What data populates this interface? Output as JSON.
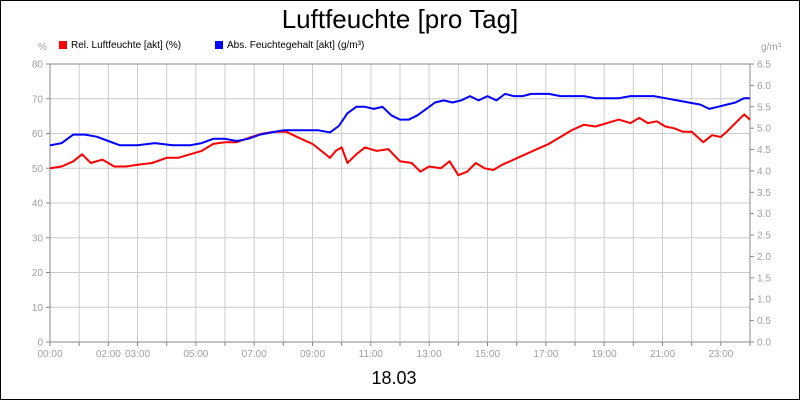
{
  "chart_data": {
    "type": "line",
    "title": "Luftfeuchte [pro Tag]",
    "date_label": "18.03",
    "y_left": {
      "unit": "%",
      "min": 0,
      "max": 80,
      "ticks": [
        "0",
        "10",
        "20",
        "30",
        "40",
        "50",
        "60",
        "70",
        "80"
      ]
    },
    "y_right": {
      "unit": "g/m³",
      "min": 0,
      "max": 6.5,
      "ticks": [
        "0.0",
        "0.5",
        "1.0",
        "1.5",
        "2.0",
        "2.5",
        "3.0",
        "3.5",
        "4.0",
        "4.5",
        "5.0",
        "5.5",
        "6.0",
        "6.5"
      ]
    },
    "x_range": [
      0,
      24
    ],
    "x_ticks": [
      {
        "h": 0,
        "label": "00:00"
      },
      {
        "h": 2,
        "label": "02:00"
      },
      {
        "h": 3,
        "label": "03:00"
      },
      {
        "h": 5,
        "label": "05:00"
      },
      {
        "h": 7,
        "label": "07:00"
      },
      {
        "h": 9,
        "label": "09:00"
      },
      {
        "h": 11,
        "label": "11:00"
      },
      {
        "h": 13,
        "label": "13:00"
      },
      {
        "h": 15,
        "label": "15:00"
      },
      {
        "h": 17,
        "label": "17:00"
      },
      {
        "h": 19,
        "label": "19:00"
      },
      {
        "h": 21,
        "label": "21:00"
      },
      {
        "h": 23,
        "label": "23:00"
      }
    ],
    "grid": true,
    "legend_position": "top-left",
    "series": [
      {
        "name": "Rel. Luftfeuchte [akt] (%)",
        "color": "#ff0000",
        "axis": "left",
        "points": [
          [
            0.0,
            50
          ],
          [
            0.4,
            50.5
          ],
          [
            0.8,
            52
          ],
          [
            1.1,
            54
          ],
          [
            1.4,
            51.5
          ],
          [
            1.8,
            52.5
          ],
          [
            2.2,
            50.5
          ],
          [
            2.6,
            50.5
          ],
          [
            3.0,
            51
          ],
          [
            3.5,
            51.5
          ],
          [
            4.0,
            53
          ],
          [
            4.4,
            53
          ],
          [
            4.8,
            54
          ],
          [
            5.2,
            55
          ],
          [
            5.6,
            57
          ],
          [
            6.0,
            57.5
          ],
          [
            6.4,
            57.5
          ],
          [
            6.9,
            59
          ],
          [
            7.3,
            60
          ],
          [
            7.7,
            60.5
          ],
          [
            8.1,
            60.5
          ],
          [
            8.6,
            58.5
          ],
          [
            9.0,
            57
          ],
          [
            9.3,
            55
          ],
          [
            9.6,
            53
          ],
          [
            9.8,
            55
          ],
          [
            10.0,
            56
          ],
          [
            10.2,
            51.5
          ],
          [
            10.5,
            54
          ],
          [
            10.8,
            56
          ],
          [
            11.2,
            55
          ],
          [
            11.6,
            55.5
          ],
          [
            12.0,
            52
          ],
          [
            12.4,
            51.5
          ],
          [
            12.7,
            49
          ],
          [
            13.0,
            50.5
          ],
          [
            13.4,
            50
          ],
          [
            13.7,
            52
          ],
          [
            14.0,
            48
          ],
          [
            14.3,
            49
          ],
          [
            14.6,
            51.5
          ],
          [
            14.9,
            50
          ],
          [
            15.2,
            49.5
          ],
          [
            15.5,
            51
          ],
          [
            15.9,
            52.5
          ],
          [
            16.3,
            54
          ],
          [
            16.7,
            55.5
          ],
          [
            17.1,
            57
          ],
          [
            17.5,
            59
          ],
          [
            17.9,
            61
          ],
          [
            18.3,
            62.5
          ],
          [
            18.7,
            62
          ],
          [
            19.1,
            63
          ],
          [
            19.5,
            64
          ],
          [
            19.9,
            63
          ],
          [
            20.2,
            64.5
          ],
          [
            20.5,
            63
          ],
          [
            20.8,
            63.5
          ],
          [
            21.1,
            62
          ],
          [
            21.4,
            61.5
          ],
          [
            21.7,
            60.5
          ],
          [
            22.0,
            60.5
          ],
          [
            22.2,
            59
          ],
          [
            22.4,
            57.5
          ],
          [
            22.7,
            59.5
          ],
          [
            23.0,
            59
          ],
          [
            23.2,
            60.5
          ],
          [
            23.5,
            63
          ],
          [
            23.8,
            65.5
          ],
          [
            24.0,
            64
          ]
        ]
      },
      {
        "name": "Abs. Feuchtegehalt [akt] (g/m³)",
        "color": "#0000ff",
        "axis": "right",
        "points": [
          [
            0.0,
            4.6
          ],
          [
            0.4,
            4.65
          ],
          [
            0.8,
            4.85
          ],
          [
            1.2,
            4.85
          ],
          [
            1.6,
            4.8
          ],
          [
            2.0,
            4.7
          ],
          [
            2.4,
            4.6
          ],
          [
            3.0,
            4.6
          ],
          [
            3.6,
            4.65
          ],
          [
            4.2,
            4.6
          ],
          [
            4.8,
            4.6
          ],
          [
            5.2,
            4.65
          ],
          [
            5.6,
            4.75
          ],
          [
            6.0,
            4.75
          ],
          [
            6.4,
            4.7
          ],
          [
            6.8,
            4.75
          ],
          [
            7.2,
            4.85
          ],
          [
            7.6,
            4.9
          ],
          [
            8.0,
            4.95
          ],
          [
            8.4,
            4.95
          ],
          [
            8.8,
            4.95
          ],
          [
            9.2,
            4.95
          ],
          [
            9.6,
            4.9
          ],
          [
            9.9,
            5.05
          ],
          [
            10.2,
            5.35
          ],
          [
            10.5,
            5.5
          ],
          [
            10.8,
            5.5
          ],
          [
            11.1,
            5.45
          ],
          [
            11.4,
            5.5
          ],
          [
            11.7,
            5.3
          ],
          [
            12.0,
            5.2
          ],
          [
            12.3,
            5.2
          ],
          [
            12.6,
            5.3
          ],
          [
            12.9,
            5.45
          ],
          [
            13.2,
            5.6
          ],
          [
            13.5,
            5.65
          ],
          [
            13.8,
            5.6
          ],
          [
            14.1,
            5.65
          ],
          [
            14.4,
            5.75
          ],
          [
            14.7,
            5.65
          ],
          [
            15.0,
            5.75
          ],
          [
            15.3,
            5.65
          ],
          [
            15.6,
            5.8
          ],
          [
            15.9,
            5.75
          ],
          [
            16.2,
            5.75
          ],
          [
            16.5,
            5.8
          ],
          [
            16.8,
            5.8
          ],
          [
            17.1,
            5.8
          ],
          [
            17.5,
            5.75
          ],
          [
            17.9,
            5.75
          ],
          [
            18.3,
            5.75
          ],
          [
            18.7,
            5.7
          ],
          [
            19.1,
            5.7
          ],
          [
            19.5,
            5.7
          ],
          [
            19.9,
            5.75
          ],
          [
            20.3,
            5.75
          ],
          [
            20.7,
            5.75
          ],
          [
            21.1,
            5.7
          ],
          [
            21.5,
            5.65
          ],
          [
            21.9,
            5.6
          ],
          [
            22.3,
            5.55
          ],
          [
            22.6,
            5.45
          ],
          [
            22.9,
            5.5
          ],
          [
            23.2,
            5.55
          ],
          [
            23.5,
            5.6
          ],
          [
            23.8,
            5.7
          ],
          [
            24.0,
            5.7
          ]
        ]
      }
    ]
  }
}
